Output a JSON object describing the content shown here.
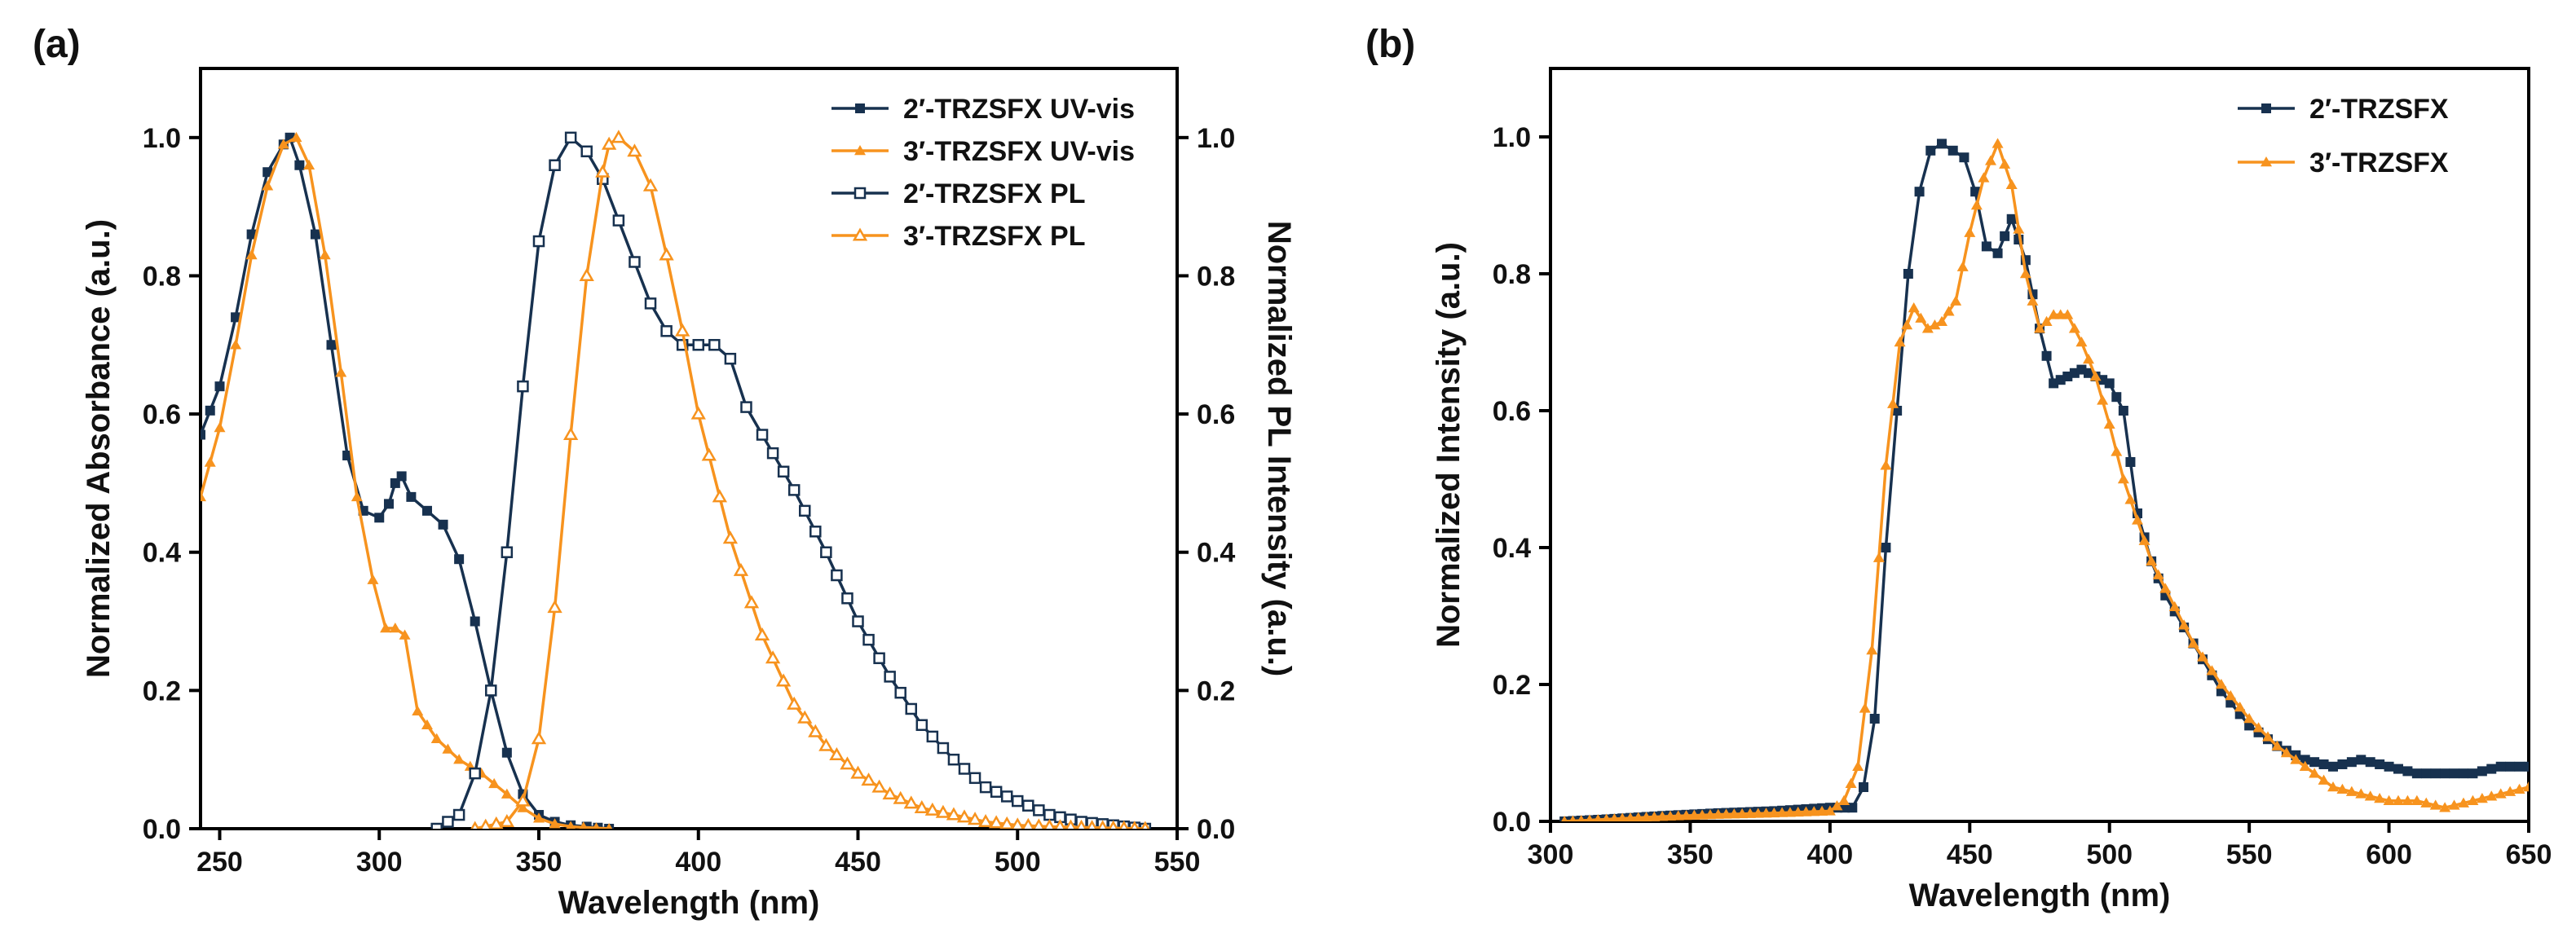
{
  "colors": {
    "navy": "#17314f",
    "orange": "#f7931e"
  },
  "chart_data": [
    {
      "type": "line",
      "panel_label": "(a)",
      "xlabel": "Wavelength (nm)",
      "ylabel": "Normalized Absorbance (a.u.)",
      "y2label": "Normalized PL Intensity (a.u.)",
      "xlim": [
        244,
        550
      ],
      "ylim": [
        0,
        1.1
      ],
      "xticks": [
        250,
        300,
        350,
        400,
        450,
        500,
        550
      ],
      "yticks": [
        0.0,
        0.2,
        0.4,
        0.6,
        0.8,
        1.0
      ],
      "xtick_labels": [
        "250",
        "300",
        "350",
        "400",
        "450",
        "500",
        "550"
      ],
      "ytick_labels": [
        "0.0",
        "0.2",
        "0.4",
        "0.6",
        "0.8",
        "1.0"
      ],
      "legend": "top-right",
      "series": [
        {
          "name": "2′-TRZSFX UV-vis",
          "color": "#17314f",
          "marker": "square-filled",
          "axis": "left",
          "x": [
            244,
            250,
            255,
            260,
            265,
            270,
            272,
            275,
            280,
            285,
            290,
            295,
            300,
            303,
            305,
            307,
            310,
            315,
            320,
            325,
            330,
            335,
            340,
            345,
            350,
            355,
            360,
            365,
            372
          ],
          "y": [
            0.57,
            0.64,
            0.74,
            0.86,
            0.95,
            0.99,
            1.0,
            0.96,
            0.86,
            0.7,
            0.54,
            0.46,
            0.45,
            0.47,
            0.5,
            0.51,
            0.48,
            0.46,
            0.44,
            0.39,
            0.3,
            0.2,
            0.11,
            0.05,
            0.02,
            0.01,
            0.005,
            0.003,
            0.0
          ]
        },
        {
          "name": "3′-TRZSFX UV-vis",
          "color": "#f7931e",
          "marker": "triangle-filled",
          "axis": "left",
          "x": [
            244,
            250,
            255,
            260,
            265,
            270,
            274,
            278,
            283,
            288,
            293,
            298,
            302,
            305,
            308,
            312,
            318,
            325,
            332,
            340,
            345,
            350,
            355,
            360,
            372
          ],
          "y": [
            0.48,
            0.58,
            0.7,
            0.83,
            0.93,
            0.99,
            1.0,
            0.96,
            0.83,
            0.66,
            0.48,
            0.36,
            0.29,
            0.29,
            0.28,
            0.17,
            0.13,
            0.1,
            0.08,
            0.05,
            0.03,
            0.015,
            0.007,
            0.003,
            0.0
          ]
        },
        {
          "name": "2′-TRZSFX PL",
          "color": "#17314f",
          "marker": "square-open",
          "axis": "right",
          "x": [
            318,
            325,
            330,
            335,
            340,
            345,
            350,
            355,
            360,
            365,
            370,
            375,
            380,
            385,
            390,
            395,
            400,
            405,
            410,
            415,
            420,
            430,
            440,
            450,
            460,
            470,
            480,
            490,
            500,
            510,
            520,
            530,
            540
          ],
          "y": [
            0.0,
            0.02,
            0.08,
            0.2,
            0.4,
            0.64,
            0.85,
            0.96,
            1.0,
            0.98,
            0.94,
            0.88,
            0.82,
            0.76,
            0.72,
            0.7,
            0.7,
            0.7,
            0.68,
            0.61,
            0.57,
            0.49,
            0.4,
            0.3,
            0.22,
            0.15,
            0.1,
            0.06,
            0.04,
            0.02,
            0.01,
            0.005,
            0.0
          ]
        },
        {
          "name": "3′-TRZSFX PL",
          "color": "#f7931e",
          "marker": "triangle-open",
          "axis": "right",
          "x": [
            330,
            340,
            345,
            350,
            355,
            360,
            365,
            370,
            372,
            375,
            380,
            385,
            390,
            395,
            400,
            410,
            420,
            430,
            440,
            450,
            460,
            470,
            480,
            490,
            500,
            510,
            520,
            530,
            540
          ],
          "y": [
            0.0,
            0.01,
            0.04,
            0.13,
            0.32,
            0.57,
            0.8,
            0.95,
            0.99,
            1.0,
            0.98,
            0.93,
            0.83,
            0.72,
            0.6,
            0.42,
            0.28,
            0.18,
            0.12,
            0.08,
            0.05,
            0.03,
            0.02,
            0.01,
            0.005,
            0.003,
            0.002,
            0.001,
            0.0
          ]
        }
      ]
    },
    {
      "type": "line",
      "panel_label": "(b)",
      "xlabel": "Wavelength (nm)",
      "ylabel": "Normalized Intensity (a.u.)",
      "xlim": [
        300,
        650
      ],
      "ylim": [
        0,
        1.1
      ],
      "xticks": [
        300,
        350,
        400,
        450,
        500,
        550,
        600,
        650
      ],
      "yticks": [
        0.0,
        0.2,
        0.4,
        0.6,
        0.8,
        1.0
      ],
      "xtick_labels": [
        "300",
        "350",
        "400",
        "450",
        "500",
        "550",
        "600",
        "650"
      ],
      "ytick_labels": [
        "0.0",
        "0.2",
        "0.4",
        "0.6",
        "0.8",
        "1.0"
      ],
      "legend": "top-right",
      "series": [
        {
          "name": "2′-TRZSFX",
          "color": "#17314f",
          "marker": "square-filled",
          "x": [
            305,
            320,
            340,
            360,
            380,
            400,
            408,
            412,
            416,
            420,
            424,
            428,
            432,
            436,
            440,
            444,
            448,
            452,
            456,
            460,
            465,
            470,
            475,
            480,
            485,
            490,
            495,
            500,
            505,
            510,
            515,
            520,
            530,
            540,
            550,
            560,
            570,
            580,
            590,
            600,
            610,
            620,
            630,
            640,
            650
          ],
          "y": [
            0.0,
            0.003,
            0.008,
            0.012,
            0.015,
            0.02,
            0.02,
            0.05,
            0.15,
            0.4,
            0.6,
            0.8,
            0.92,
            0.98,
            0.99,
            0.98,
            0.97,
            0.92,
            0.84,
            0.83,
            0.88,
            0.82,
            0.72,
            0.64,
            0.65,
            0.66,
            0.65,
            0.64,
            0.6,
            0.45,
            0.38,
            0.33,
            0.26,
            0.19,
            0.14,
            0.11,
            0.09,
            0.08,
            0.09,
            0.08,
            0.07,
            0.07,
            0.07,
            0.08,
            0.08
          ]
        },
        {
          "name": "3′-TRZSFX",
          "color": "#f7931e",
          "marker": "triangle-filled",
          "x": [
            305,
            320,
            340,
            360,
            380,
            400,
            405,
            410,
            415,
            420,
            425,
            430,
            435,
            440,
            445,
            450,
            455,
            460,
            465,
            470,
            475,
            480,
            485,
            490,
            495,
            500,
            505,
            510,
            515,
            520,
            530,
            540,
            550,
            560,
            570,
            580,
            590,
            600,
            610,
            620,
            630,
            640,
            650
          ],
          "y": [
            0.0,
            0.003,
            0.007,
            0.01,
            0.012,
            0.015,
            0.03,
            0.08,
            0.25,
            0.52,
            0.7,
            0.75,
            0.72,
            0.73,
            0.76,
            0.86,
            0.94,
            0.99,
            0.93,
            0.8,
            0.72,
            0.74,
            0.74,
            0.7,
            0.65,
            0.58,
            0.5,
            0.44,
            0.38,
            0.34,
            0.26,
            0.2,
            0.15,
            0.11,
            0.08,
            0.05,
            0.04,
            0.03,
            0.03,
            0.02,
            0.03,
            0.04,
            0.05
          ]
        }
      ]
    }
  ]
}
